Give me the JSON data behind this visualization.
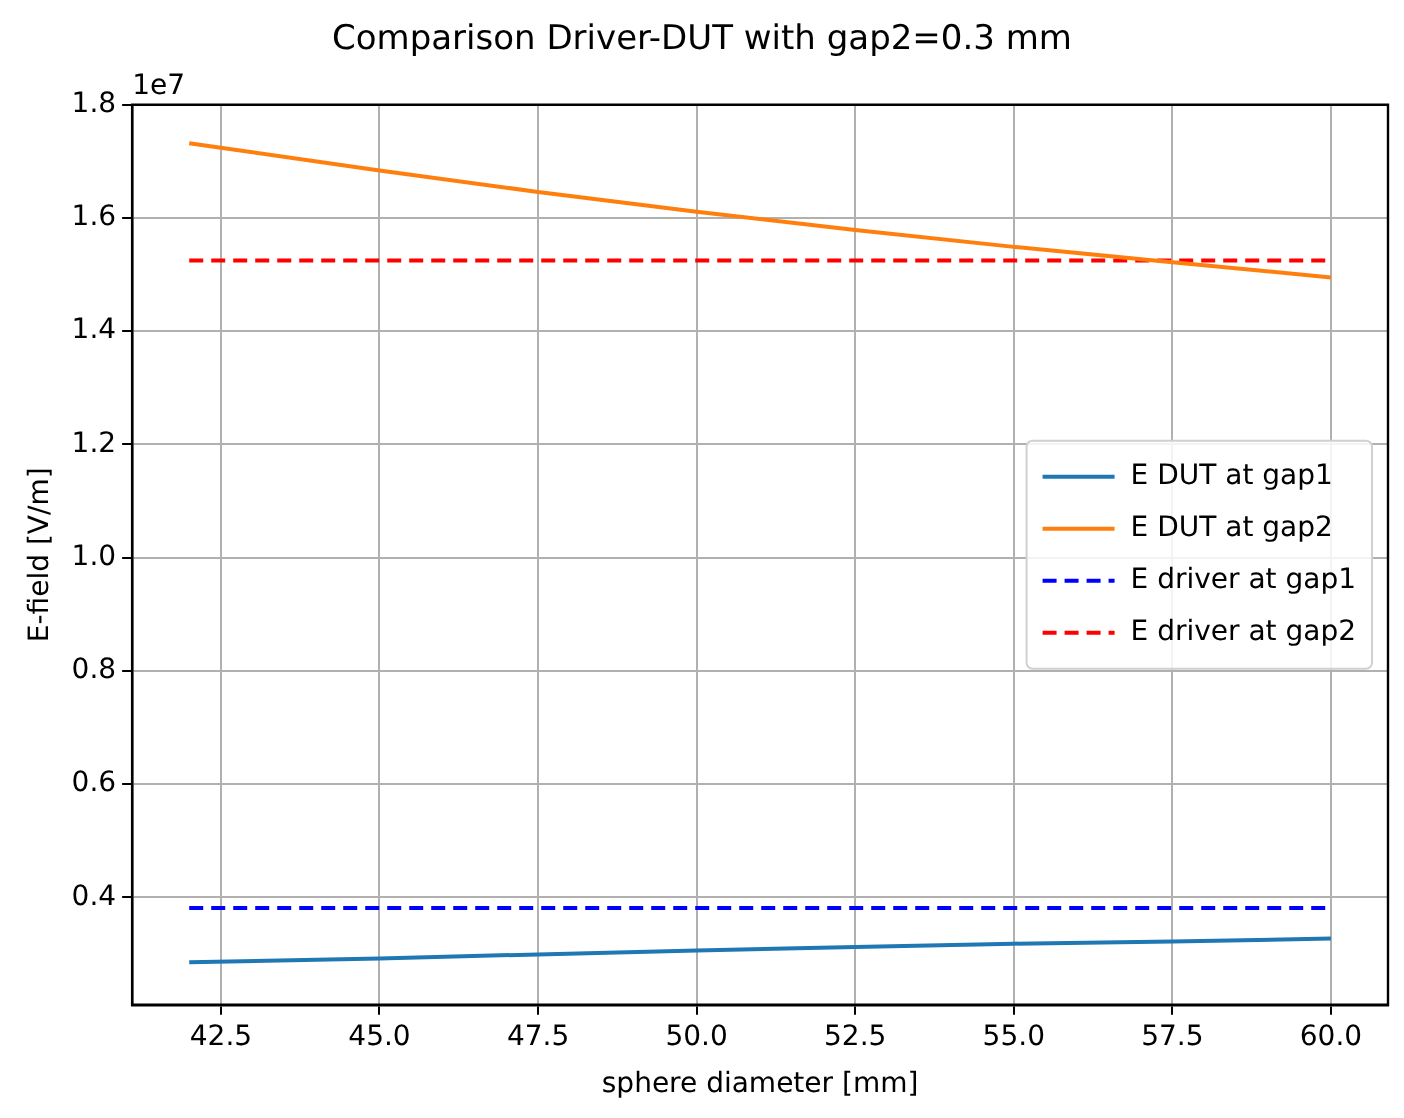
{
  "chart_data": {
    "type": "line",
    "title": "Comparison Driver-DUT with gap2=0.3 mm",
    "xlabel": "sphere diameter [mm]",
    "ylabel": "E-field [V/m]",
    "annotations": [
      "1e7"
    ],
    "x": [
      42,
      45,
      47.5,
      50,
      52.5,
      55,
      57.5,
      60
    ],
    "series": [
      {
        "name": "E DUT at gap1",
        "color": "#1f77b4",
        "line_style": "solid",
        "values": [
          0.285,
          0.292,
          0.299,
          0.306,
          0.312,
          0.318,
          0.322,
          0.327
        ]
      },
      {
        "name": "E DUT at gap2",
        "color": "#ff7f0e",
        "line_style": "solid",
        "values": [
          1.732,
          1.684,
          1.646,
          1.611,
          1.579,
          1.549,
          1.522,
          1.495
        ]
      },
      {
        "name": "E driver at gap1",
        "color": "#0000ff",
        "line_style": "dashed",
        "values": [
          0.381,
          0.381,
          0.381,
          0.381,
          0.381,
          0.381,
          0.381,
          0.381
        ]
      },
      {
        "name": "E driver at gap2",
        "color": "#ff0000",
        "line_style": "dashed",
        "values": [
          1.525,
          1.525,
          1.525,
          1.525,
          1.525,
          1.525,
          1.525,
          1.525
        ]
      }
    ],
    "xlim": [
      41.1,
      60.9
    ],
    "xticks": [
      {
        "value": 42.5,
        "label": "42.5"
      },
      {
        "value": 45,
        "label": "45.0"
      },
      {
        "value": 47.5,
        "label": "47.5"
      },
      {
        "value": 50,
        "label": "50.0"
      },
      {
        "value": 52.5,
        "label": "52.5"
      },
      {
        "value": 55,
        "label": "55.0"
      },
      {
        "value": 57.5,
        "label": "57.5"
      },
      {
        "value": 60,
        "label": "60.0"
      }
    ],
    "ylim": [
      0.21,
      1.8
    ],
    "yticks": [
      {
        "value": 0.4,
        "label": "0.4"
      },
      {
        "value": 0.6,
        "label": "0.6"
      },
      {
        "value": 0.8,
        "label": "0.8"
      },
      {
        "value": 1,
        "label": "1.0"
      },
      {
        "value": 1.2,
        "label": "1.2"
      },
      {
        "value": 1.4,
        "label": "1.4"
      },
      {
        "value": 1.6,
        "label": "1.6"
      },
      {
        "value": 1.8,
        "label": "1.8"
      }
    ],
    "grid": true,
    "legend": "center right",
    "marker": "none"
  }
}
